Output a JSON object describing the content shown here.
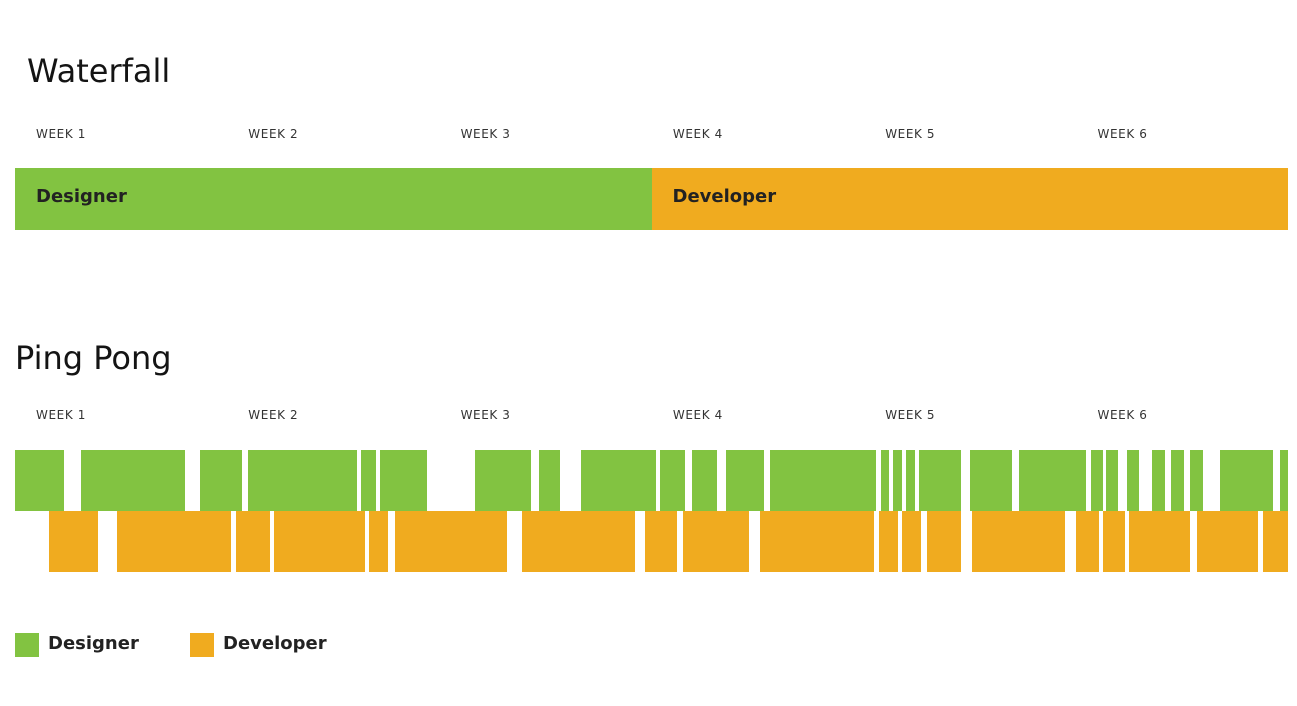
{
  "waterfall": {
    "title": "Waterfall",
    "weeks": [
      "WEEK 1",
      "WEEK 2",
      "WEEK 3",
      "WEEK 4",
      "WEEK 5",
      "WEEK 6"
    ],
    "phases": [
      {
        "role": "designer",
        "label": "Designer",
        "start_week": 0,
        "end_week": 3
      },
      {
        "role": "developer",
        "label": "Developer",
        "start_week": 3,
        "end_week": 6
      }
    ]
  },
  "pingpong": {
    "title": "Ping Pong",
    "weeks": [
      "WEEK 1",
      "WEEK 2",
      "WEEK 3",
      "WEEK 4",
      "WEEK 5",
      "WEEK 6"
    ],
    "designer_blocks": [
      [
        0.0,
        0.23
      ],
      [
        0.31,
        0.8
      ],
      [
        0.87,
        1.07
      ],
      [
        1.1,
        1.61
      ],
      [
        1.63,
        1.7
      ],
      [
        1.72,
        1.94
      ],
      [
        2.17,
        2.43
      ],
      [
        2.47,
        2.57
      ],
      [
        2.67,
        3.02
      ],
      [
        3.04,
        3.16
      ],
      [
        3.19,
        3.31
      ],
      [
        3.35,
        3.53
      ],
      [
        3.56,
        4.06
      ],
      [
        4.08,
        4.12
      ],
      [
        4.14,
        4.18
      ],
      [
        4.2,
        4.24
      ],
      [
        4.26,
        4.46
      ],
      [
        4.5,
        4.7
      ],
      [
        4.73,
        5.05
      ],
      [
        5.07,
        5.13
      ],
      [
        5.14,
        5.2
      ],
      [
        5.24,
        5.3
      ],
      [
        5.36,
        5.42
      ],
      [
        5.45,
        5.51
      ],
      [
        5.54,
        5.6
      ],
      [
        5.68,
        5.93
      ],
      [
        5.96,
        6.06
      ]
    ],
    "developer_blocks": [
      [
        0.16,
        0.39
      ],
      [
        0.48,
        1.02
      ],
      [
        1.04,
        1.2
      ],
      [
        1.22,
        1.65
      ],
      [
        1.67,
        1.76
      ],
      [
        1.79,
        2.32
      ],
      [
        2.39,
        2.92
      ],
      [
        2.97,
        3.12
      ],
      [
        3.15,
        3.46
      ],
      [
        3.51,
        4.05
      ],
      [
        4.07,
        4.16
      ],
      [
        4.18,
        4.27
      ],
      [
        4.3,
        4.46
      ],
      [
        4.51,
        4.95
      ],
      [
        5.0,
        5.11
      ],
      [
        5.13,
        5.23
      ],
      [
        5.25,
        5.54
      ],
      [
        5.57,
        5.86
      ],
      [
        5.88,
        6.0
      ]
    ]
  },
  "legend": [
    {
      "role": "designer",
      "label": "Designer"
    },
    {
      "role": "developer",
      "label": "Developer"
    }
  ],
  "colors": {
    "designer": "#82c341",
    "developer": "#f0ab1f"
  }
}
